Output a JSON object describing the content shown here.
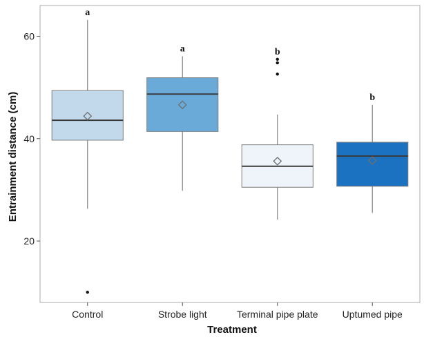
{
  "chart_data": {
    "type": "boxplot",
    "xlabel": "Treatment",
    "ylabel": "Entrainment distance (cm)",
    "ylim": [
      8,
      66
    ],
    "yticks": [
      20,
      40,
      60
    ],
    "grid": false,
    "legend": "none",
    "categories": [
      "Control",
      "Strobe light",
      "Terminal pipe plate",
      "Uptumed pipe"
    ],
    "colors": [
      "#c2d9ec",
      "#6aaad8",
      "#eef4fa",
      "#1b72c0"
    ],
    "boxes": [
      {
        "name": "Control",
        "whisker_low": 26.3,
        "q1": 39.7,
        "median": 43.6,
        "q3": 49.4,
        "whisker_high": 63.2,
        "mean": 44.4,
        "outliers": [
          10.0
        ],
        "letter": "a"
      },
      {
        "name": "Strobe light",
        "whisker_low": 29.8,
        "q1": 41.4,
        "median": 48.7,
        "q3": 51.9,
        "whisker_high": 56.1,
        "mean": 46.6,
        "outliers": [],
        "letter": "a"
      },
      {
        "name": "Terminal pipe plate",
        "whisker_low": 24.2,
        "q1": 30.5,
        "median": 34.6,
        "q3": 38.8,
        "whisker_high": 44.7,
        "mean": 35.6,
        "outliers": [
          52.6,
          54.8,
          55.5
        ],
        "letter": "b"
      },
      {
        "name": "Uptumed pipe",
        "whisker_low": 25.5,
        "q1": 30.7,
        "median": 36.6,
        "q3": 39.3,
        "whisker_high": 46.6,
        "mean": 35.7,
        "outliers": [],
        "letter": "b"
      }
    ],
    "style": {
      "frame_color": "#b9b9b9",
      "whisker_color": "#8c8c8c",
      "box_edge_color": "#7f7f7f",
      "median_color": "#3a3a3a",
      "mean_marker_color": "#6e6e6e",
      "outlier_color": "#111111"
    }
  }
}
